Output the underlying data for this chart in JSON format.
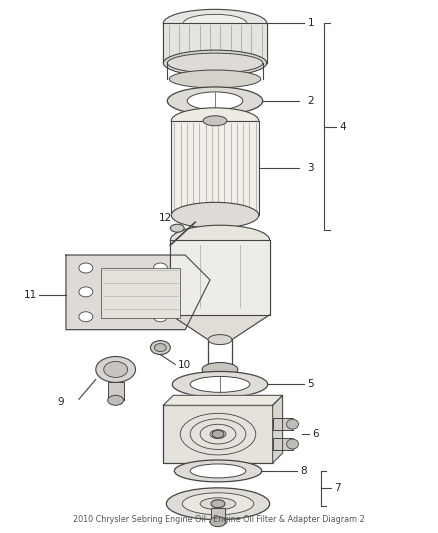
{
  "title": "2010 Chrysler Sebring Engine Oil , Engine Oil Filter & Adapter Diagram 2",
  "background_color": "#ffffff",
  "line_color": "#444444",
  "text_color": "#222222",
  "fig_width": 4.38,
  "fig_height": 5.33,
  "dpi": 100,
  "label_fontsize": 7.5
}
